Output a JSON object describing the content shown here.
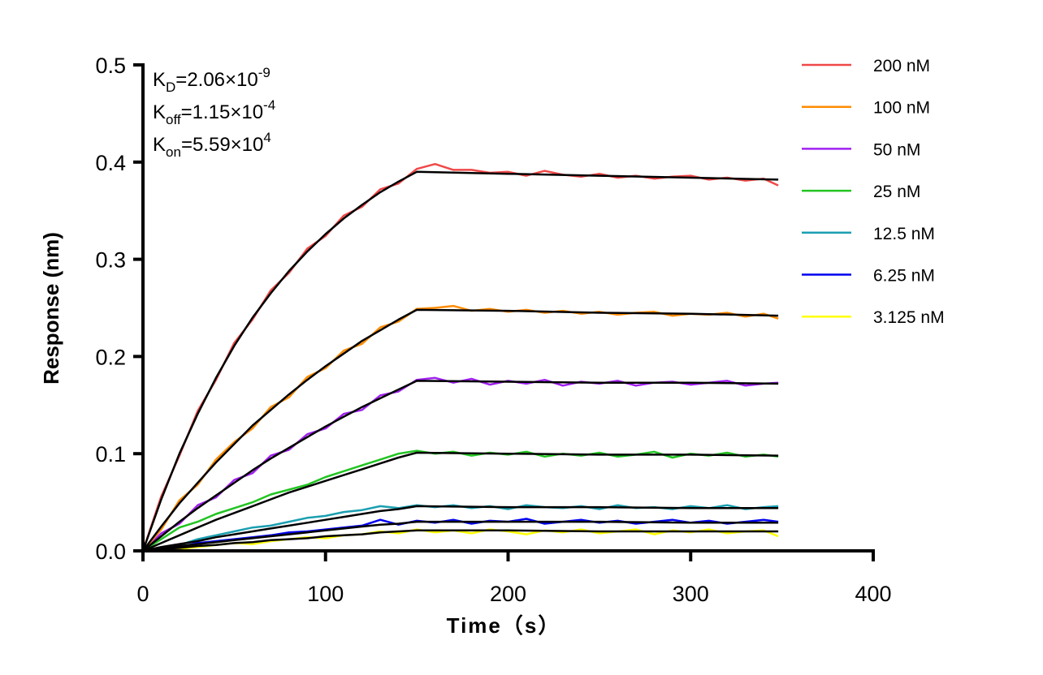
{
  "chart_data": {
    "type": "line",
    "xlabel": "Time（s）",
    "ylabel": "Response (nm)",
    "xlim": [
      0,
      400
    ],
    "ylim": [
      0,
      0.5
    ],
    "xticks": [
      "0",
      "100",
      "200",
      "300",
      "400"
    ],
    "yticks": [
      "0.0",
      "0.1",
      "0.2",
      "0.3",
      "0.4",
      "0.5"
    ],
    "grid": false,
    "legend_position": "right",
    "annotations": [
      {
        "main": "K",
        "sub": "D",
        "value": "=2.06×10",
        "exp": "-9"
      },
      {
        "main": "K",
        "sub": "off",
        "value": "=1.15×10",
        "exp": "-4"
      },
      {
        "main": "K",
        "sub": "on",
        "value": "=5.59×10",
        "exp": "4"
      }
    ],
    "fit_color": "#000000",
    "raw_x": [
      0,
      10,
      20,
      30,
      40,
      50,
      60,
      70,
      80,
      90,
      100,
      110,
      120,
      130,
      140,
      150,
      160,
      170,
      180,
      190,
      200,
      210,
      220,
      230,
      240,
      250,
      260,
      270,
      280,
      290,
      300,
      310,
      320,
      330,
      340,
      348
    ],
    "fit_x": [
      0,
      10,
      20,
      30,
      40,
      50,
      60,
      70,
      80,
      90,
      100,
      110,
      120,
      130,
      140,
      150,
      200,
      250,
      300,
      348
    ],
    "series": [
      {
        "name": "200 nM",
        "color": "#f04848",
        "raw": [
          0,
          0.056,
          0.098,
          0.144,
          0.176,
          0.214,
          0.238,
          0.268,
          0.286,
          0.311,
          0.324,
          0.345,
          0.354,
          0.372,
          0.378,
          0.393,
          0.398,
          0.392,
          0.392,
          0.389,
          0.39,
          0.386,
          0.391,
          0.387,
          0.385,
          0.388,
          0.384,
          0.386,
          0.383,
          0.385,
          0.386,
          0.382,
          0.384,
          0.381,
          0.383,
          0.376
        ],
        "fit": [
          0,
          0.053,
          0.1,
          0.141,
          0.178,
          0.211,
          0.24,
          0.265,
          0.288,
          0.308,
          0.326,
          0.342,
          0.356,
          0.369,
          0.38,
          0.39,
          0.388,
          0.386,
          0.384,
          0.382
        ]
      },
      {
        "name": "100 nM",
        "color": "#ff8c00",
        "raw": [
          0,
          0.022,
          0.052,
          0.068,
          0.094,
          0.112,
          0.126,
          0.148,
          0.158,
          0.179,
          0.188,
          0.206,
          0.213,
          0.23,
          0.236,
          0.249,
          0.25,
          0.252,
          0.247,
          0.249,
          0.246,
          0.248,
          0.245,
          0.247,
          0.244,
          0.246,
          0.243,
          0.245,
          0.246,
          0.242,
          0.244,
          0.243,
          0.245,
          0.241,
          0.244,
          0.239
        ],
        "fit": [
          0,
          0.025,
          0.049,
          0.07,
          0.091,
          0.11,
          0.129,
          0.145,
          0.161,
          0.176,
          0.19,
          0.203,
          0.216,
          0.227,
          0.238,
          0.248,
          0.247,
          0.245,
          0.244,
          0.242
        ]
      },
      {
        "name": "50 nM",
        "color": "#a020f0",
        "raw": [
          0,
          0.018,
          0.028,
          0.047,
          0.055,
          0.073,
          0.08,
          0.098,
          0.104,
          0.12,
          0.126,
          0.141,
          0.145,
          0.16,
          0.164,
          0.176,
          0.178,
          0.173,
          0.177,
          0.171,
          0.175,
          0.172,
          0.176,
          0.17,
          0.174,
          0.172,
          0.175,
          0.17,
          0.173,
          0.174,
          0.171,
          0.173,
          0.175,
          0.17,
          0.172,
          0.173
        ],
        "fit": [
          0,
          0.015,
          0.03,
          0.044,
          0.057,
          0.07,
          0.083,
          0.095,
          0.106,
          0.117,
          0.128,
          0.138,
          0.148,
          0.157,
          0.166,
          0.175,
          0.174,
          0.173,
          0.173,
          0.172
        ]
      },
      {
        "name": "25 nM",
        "color": "#22c422",
        "raw": [
          0,
          0.012,
          0.024,
          0.03,
          0.038,
          0.044,
          0.05,
          0.058,
          0.063,
          0.068,
          0.076,
          0.082,
          0.088,
          0.094,
          0.1,
          0.103,
          0.1,
          0.102,
          0.098,
          0.101,
          0.099,
          0.102,
          0.097,
          0.1,
          0.098,
          0.101,
          0.097,
          0.099,
          0.102,
          0.096,
          0.1,
          0.098,
          0.101,
          0.097,
          0.099,
          0.097
        ],
        "fit": [
          0,
          0.008,
          0.016,
          0.024,
          0.032,
          0.039,
          0.046,
          0.053,
          0.06,
          0.066,
          0.072,
          0.078,
          0.084,
          0.09,
          0.096,
          0.101,
          0.1,
          0.099,
          0.099,
          0.098
        ]
      },
      {
        "name": "12.5 nM",
        "color": "#1a9fb0",
        "raw": [
          0,
          0.002,
          0.006,
          0.012,
          0.016,
          0.02,
          0.024,
          0.026,
          0.03,
          0.034,
          0.036,
          0.04,
          0.042,
          0.046,
          0.044,
          0.047,
          0.045,
          0.047,
          0.044,
          0.046,
          0.043,
          0.047,
          0.045,
          0.044,
          0.046,
          0.043,
          0.047,
          0.044,
          0.045,
          0.043,
          0.046,
          0.044,
          0.047,
          0.043,
          0.045,
          0.046
        ],
        "fit": [
          0,
          0.004,
          0.007,
          0.01,
          0.014,
          0.017,
          0.02,
          0.023,
          0.026,
          0.029,
          0.032,
          0.035,
          0.038,
          0.041,
          0.043,
          0.046,
          0.045,
          0.045,
          0.044,
          0.044
        ]
      },
      {
        "name": "6.25 nM",
        "color": "#0000ee",
        "raw": [
          0,
          0.002,
          0.004,
          0.008,
          0.01,
          0.012,
          0.014,
          0.016,
          0.019,
          0.02,
          0.022,
          0.024,
          0.026,
          0.032,
          0.027,
          0.031,
          0.029,
          0.032,
          0.028,
          0.031,
          0.03,
          0.033,
          0.028,
          0.03,
          0.032,
          0.029,
          0.031,
          0.028,
          0.03,
          0.032,
          0.029,
          0.031,
          0.028,
          0.03,
          0.032,
          0.03
        ],
        "fit": [
          0,
          0.002,
          0.005,
          0.007,
          0.009,
          0.011,
          0.013,
          0.015,
          0.017,
          0.019,
          0.021,
          0.023,
          0.025,
          0.027,
          0.028,
          0.03,
          0.03,
          0.03,
          0.029,
          0.029
        ]
      },
      {
        "name": "3.125 nM",
        "color": "#ffff00",
        "raw": [
          0,
          0.0,
          0.002,
          0.004,
          0.006,
          0.008,
          0.007,
          0.01,
          0.012,
          0.014,
          0.013,
          0.016,
          0.017,
          0.02,
          0.018,
          0.022,
          0.019,
          0.021,
          0.018,
          0.022,
          0.02,
          0.017,
          0.021,
          0.019,
          0.022,
          0.018,
          0.02,
          0.022,
          0.017,
          0.021,
          0.019,
          0.022,
          0.018,
          0.02,
          0.021,
          0.015
        ],
        "fit": [
          0,
          0.002,
          0.003,
          0.005,
          0.006,
          0.008,
          0.009,
          0.011,
          0.012,
          0.013,
          0.015,
          0.016,
          0.017,
          0.019,
          0.02,
          0.021,
          0.021,
          0.02,
          0.02,
          0.02
        ]
      }
    ]
  }
}
